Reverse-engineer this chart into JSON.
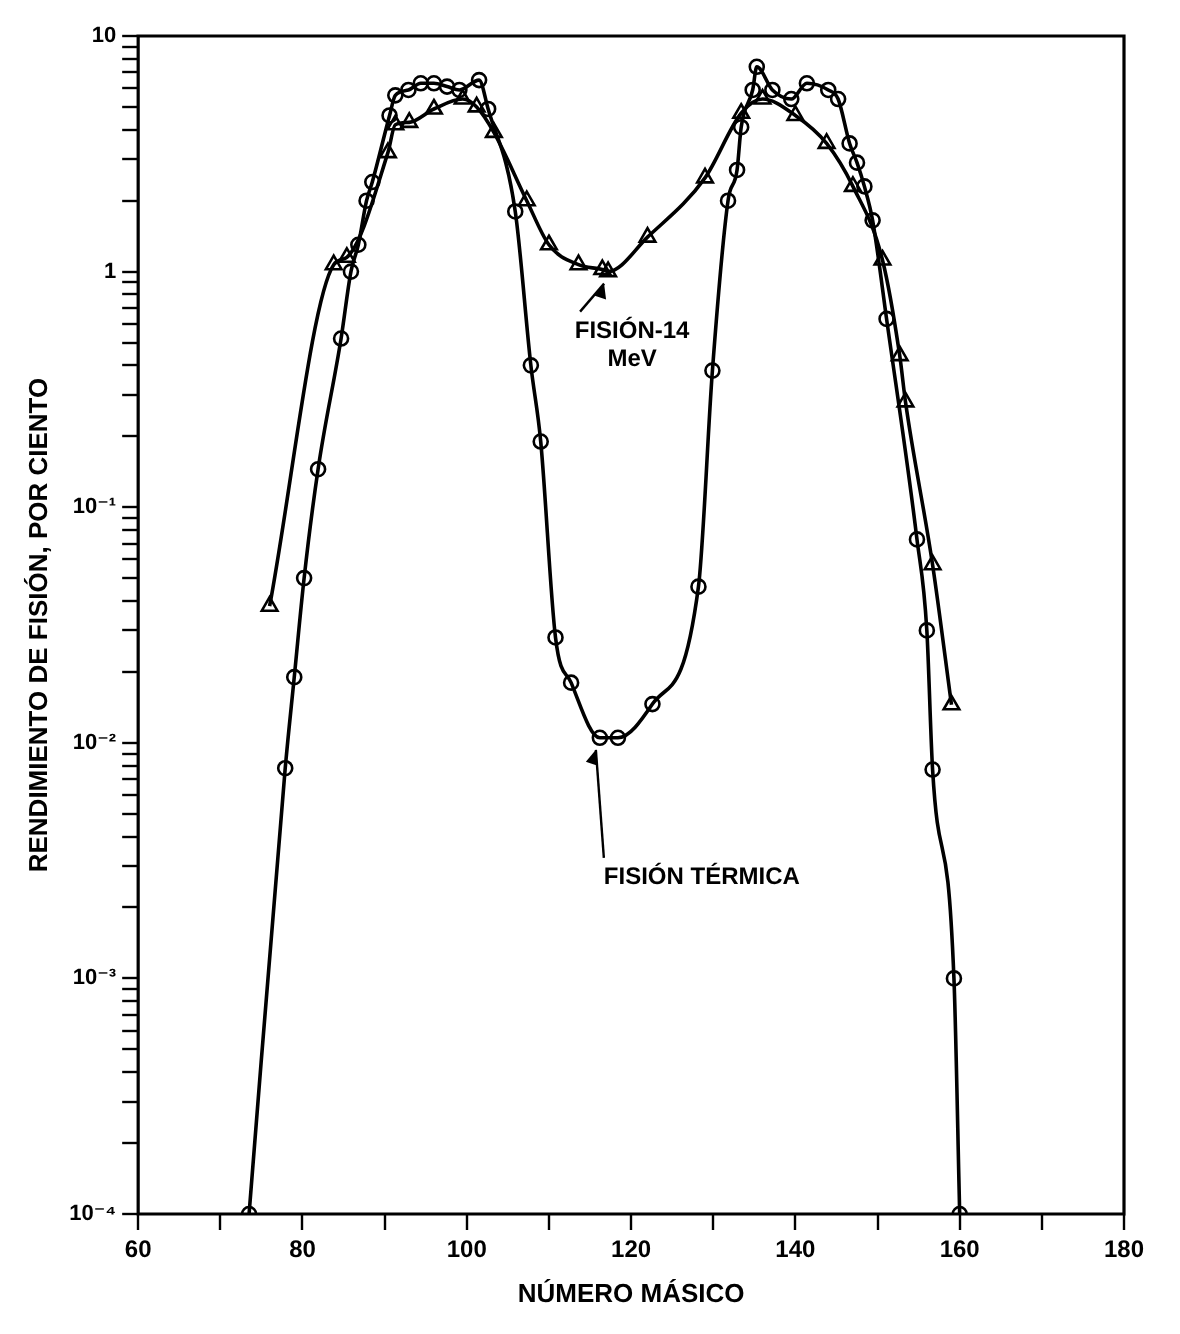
{
  "chart_data": {
    "type": "line",
    "xlabel": "NÚMERO MÁSICO",
    "ylabel": "RENDIMIENTO DE FISIÓN, POR CIENTO",
    "log": "y",
    "grid": false,
    "legend": false,
    "line_style": "solid",
    "xlim": [
      60,
      180
    ],
    "xticks": [
      60,
      {
        "value": 70,
        "label": null
      },
      80,
      {
        "value": 90,
        "label": null
      },
      100,
      {
        "value": 110,
        "label": null
      },
      120,
      {
        "value": 130,
        "label": null
      },
      140,
      {
        "value": 150,
        "label": null
      },
      160,
      {
        "value": 170,
        "label": null
      },
      180
    ],
    "ylim": [
      0.0001,
      10
    ],
    "yticks": [
      {
        "value": 0.0001,
        "label": "10⁻⁴"
      },
      {
        "value": 0.0002,
        "label": null
      },
      {
        "value": 0.0003,
        "label": null
      },
      {
        "value": 0.0004,
        "label": null
      },
      {
        "value": 0.0005,
        "label": null
      },
      {
        "value": 0.0006,
        "label": null
      },
      {
        "value": 0.0007,
        "label": null
      },
      {
        "value": 0.0008,
        "label": null
      },
      {
        "value": 0.0009,
        "label": null
      },
      {
        "value": 0.001,
        "label": "10⁻³"
      },
      {
        "value": 0.002,
        "label": null
      },
      {
        "value": 0.003,
        "label": null
      },
      {
        "value": 0.004,
        "label": null
      },
      {
        "value": 0.005,
        "label": null
      },
      {
        "value": 0.006,
        "label": null
      },
      {
        "value": 0.007,
        "label": null
      },
      {
        "value": 0.008,
        "label": null
      },
      {
        "value": 0.009,
        "label": null
      },
      {
        "value": 0.01,
        "label": "10⁻²"
      },
      {
        "value": 0.02,
        "label": null
      },
      {
        "value": 0.03,
        "label": null
      },
      {
        "value": 0.04,
        "label": null
      },
      {
        "value": 0.05,
        "label": null
      },
      {
        "value": 0.06,
        "label": null
      },
      {
        "value": 0.07,
        "label": null
      },
      {
        "value": 0.08,
        "label": null
      },
      {
        "value": 0.09,
        "label": null
      },
      {
        "value": 0.1,
        "label": "10⁻¹"
      },
      {
        "value": 0.2,
        "label": null
      },
      {
        "value": 0.3,
        "label": null
      },
      {
        "value": 0.4,
        "label": null
      },
      {
        "value": 0.5,
        "label": null
      },
      {
        "value": 0.6,
        "label": null
      },
      {
        "value": 0.7,
        "label": null
      },
      {
        "value": 0.8,
        "label": null
      },
      {
        "value": 0.9,
        "label": null
      },
      1,
      {
        "value": 2,
        "label": null
      },
      {
        "value": 3,
        "label": null
      },
      {
        "value": 4,
        "label": null
      },
      {
        "value": 5,
        "label": null
      },
      {
        "value": 6,
        "label": null
      },
      {
        "value": 7,
        "label": null
      },
      {
        "value": 8,
        "label": null
      },
      {
        "value": 9,
        "label": null
      },
      10
    ],
    "series": [
      {
        "color": "#000000",
        "marker": "circle",
        "x": [
          73.5,
          77.9,
          79,
          80.2,
          81.9,
          84.7,
          85.9,
          86.8,
          87.8,
          88.5,
          90.6,
          91.3,
          92.9,
          94.4,
          96,
          97.6,
          99.1,
          101.5,
          102.6,
          105.9,
          107.8,
          109,
          110.8,
          112.7,
          116.2,
          118.4,
          122.6,
          128.2,
          129.9,
          131.8,
          132.9,
          133.4,
          134.8,
          135.3,
          137.2,
          139.5,
          141.4,
          144,
          145.2,
          146.6,
          147.5,
          148.4,
          149.4,
          151.1,
          154.8,
          156,
          156.7,
          159.3,
          160
        ],
        "values": [
          0.0001,
          0.0078,
          0.019,
          0.05,
          0.145,
          0.52,
          1.0,
          1.3,
          2.0,
          2.4,
          4.6,
          5.6,
          5.9,
          6.3,
          6.3,
          6.1,
          5.9,
          6.5,
          4.9,
          1.8,
          0.4,
          0.19,
          0.028,
          0.018,
          0.0105,
          0.0105,
          0.0146,
          0.046,
          0.38,
          2.0,
          2.7,
          4.1,
          5.9,
          7.4,
          5.9,
          5.4,
          6.3,
          5.9,
          5.4,
          3.5,
          2.9,
          2.3,
          1.65,
          0.63,
          0.073,
          0.03,
          0.0077,
          0.001,
          0.0001
        ]
      },
      {
        "color": "#000000",
        "marker": "triangle",
        "x": [
          76,
          83.8,
          85.4,
          90.4,
          91.3,
          93,
          96,
          99.5,
          101.2,
          103.3,
          107.3,
          110,
          113.6,
          116.5,
          117.2,
          122,
          129,
          133.4,
          136,
          140,
          143.8,
          147,
          150.6,
          152.7,
          153.4,
          156.7,
          159
        ],
        "values": [
          0.038,
          1.07,
          1.15,
          3.2,
          4.2,
          4.3,
          4.9,
          5.4,
          5.0,
          3.9,
          2.0,
          1.3,
          1.07,
          1.02,
          1.0,
          1.4,
          2.5,
          4.7,
          5.4,
          4.6,
          3.5,
          2.3,
          1.12,
          0.44,
          0.28,
          0.057,
          0.0145
        ]
      }
    ],
    "annotations": [
      {
        "text": "FISIÓN-14 MeV",
        "x": 117.2,
        "y": 1.0
      },
      {
        "text": "FISIÓN TÉRMICA",
        "x": 116.2,
        "y": 0.0105
      }
    ]
  }
}
